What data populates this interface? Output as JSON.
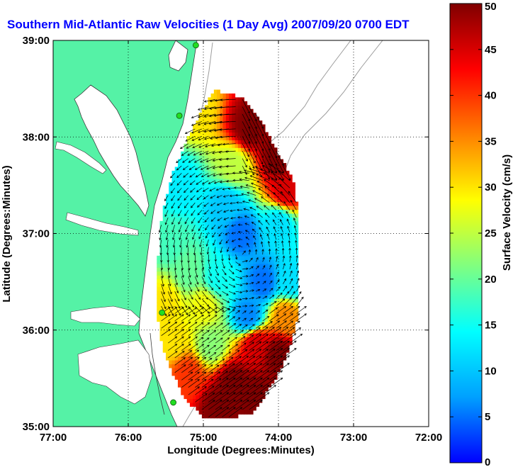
{
  "chart_data": {
    "type": "heatmap",
    "title": "Southern Mid-Atlantic Raw Velocities (1 Day Avg) 2007/09/20 0700 EDT",
    "xlabel": "Longitude (Degrees:Minutes)",
    "ylabel": "Latitude (Degrees:Minutes)",
    "xlim": [
      -77,
      -72
    ],
    "ylim": [
      35,
      39
    ],
    "x_ticks": [
      {
        "value": -77,
        "label": "77:00"
      },
      {
        "value": -76,
        "label": "76:00"
      },
      {
        "value": -75,
        "label": "75:00"
      },
      {
        "value": -74,
        "label": "74:00"
      },
      {
        "value": -73,
        "label": "73:00"
      },
      {
        "value": -72,
        "label": "72:00"
      }
    ],
    "y_ticks": [
      {
        "value": 35,
        "label": "35:00"
      },
      {
        "value": 36,
        "label": "36:00"
      },
      {
        "value": 37,
        "label": "37:00"
      },
      {
        "value": 38,
        "label": "38:00"
      },
      {
        "value": 39,
        "label": "39:00"
      }
    ],
    "grid": true,
    "colorbar": {
      "label": "Surface Velocity (cm/s)",
      "min": 0,
      "max": 50,
      "ticks": [
        {
          "value": 0,
          "label": "0"
        },
        {
          "value": 5,
          "label": "5"
        },
        {
          "value": 10,
          "label": "10"
        },
        {
          "value": 15,
          "label": "15"
        },
        {
          "value": 20,
          "label": "20"
        },
        {
          "value": 25,
          "label": "25"
        },
        {
          "value": 30,
          "label": "30"
        },
        {
          "value": 35,
          "label": "35"
        },
        {
          "value": 40,
          "label": "40"
        },
        {
          "value": 45,
          "label": "45"
        },
        {
          "value": 50,
          "label": "50"
        }
      ],
      "colormap": [
        "#0000ff",
        "#00a0ff",
        "#00ffff",
        "#80ff80",
        "#ffff00",
        "#ff8000",
        "#ff0000",
        "#800000"
      ]
    },
    "field": {
      "outline": [
        [
          -74.85,
          38.48
        ],
        [
          -74.65,
          38.45
        ],
        [
          -74.45,
          38.38
        ],
        [
          -74.25,
          38.2
        ],
        [
          -74.05,
          37.9
        ],
        [
          -73.8,
          37.55
        ],
        [
          -73.75,
          37.3
        ],
        [
          -73.72,
          36.9
        ],
        [
          -73.72,
          36.35
        ],
        [
          -73.75,
          36.1
        ],
        [
          -73.85,
          35.8
        ],
        [
          -74.0,
          35.55
        ],
        [
          -74.2,
          35.3
        ],
        [
          -74.35,
          35.15
        ],
        [
          -74.7,
          35.08
        ],
        [
          -75.0,
          35.1
        ],
        [
          -75.25,
          35.3
        ],
        [
          -75.4,
          35.55
        ],
        [
          -75.55,
          35.85
        ],
        [
          -75.62,
          36.2
        ],
        [
          -75.62,
          36.6
        ],
        [
          -75.55,
          37.2
        ],
        [
          -75.42,
          37.6
        ],
        [
          -75.2,
          38.0
        ],
        [
          -75.0,
          38.3
        ]
      ],
      "speed_points": [
        {
          "lon": -75.1,
          "lat": 38.3,
          "speed": 30
        },
        {
          "lon": -74.4,
          "lat": 38.1,
          "speed": 50
        },
        {
          "lon": -74.0,
          "lat": 37.8,
          "speed": 50
        },
        {
          "lon": -73.9,
          "lat": 37.45,
          "speed": 45
        },
        {
          "lon": -74.6,
          "lat": 37.7,
          "speed": 25
        },
        {
          "lon": -75.3,
          "lat": 37.5,
          "speed": 13
        },
        {
          "lon": -74.7,
          "lat": 37.3,
          "speed": 10
        },
        {
          "lon": -74.5,
          "lat": 37.0,
          "speed": 5
        },
        {
          "lon": -74.0,
          "lat": 37.1,
          "speed": 12
        },
        {
          "lon": -75.45,
          "lat": 36.9,
          "speed": 18
        },
        {
          "lon": -75.2,
          "lat": 36.6,
          "speed": 20
        },
        {
          "lon": -74.8,
          "lat": 36.55,
          "speed": 15
        },
        {
          "lon": -74.2,
          "lat": 36.5,
          "speed": 5
        },
        {
          "lon": -73.85,
          "lat": 36.5,
          "speed": 12
        },
        {
          "lon": -75.5,
          "lat": 36.3,
          "speed": 30
        },
        {
          "lon": -75.0,
          "lat": 36.25,
          "speed": 28
        },
        {
          "lon": -74.4,
          "lat": 36.15,
          "speed": 6
        },
        {
          "lon": -73.9,
          "lat": 36.15,
          "speed": 35
        },
        {
          "lon": -75.4,
          "lat": 35.9,
          "speed": 30
        },
        {
          "lon": -74.9,
          "lat": 35.85,
          "speed": 22
        },
        {
          "lon": -74.3,
          "lat": 35.85,
          "speed": 45
        },
        {
          "lon": -74.0,
          "lat": 35.75,
          "speed": 50
        },
        {
          "lon": -75.2,
          "lat": 35.55,
          "speed": 40
        },
        {
          "lon": -74.6,
          "lat": 35.45,
          "speed": 50
        },
        {
          "lon": -74.3,
          "lat": 35.3,
          "speed": 50
        },
        {
          "lon": -74.8,
          "lat": 35.2,
          "speed": 50
        }
      ],
      "vortex_center": {
        "lon": -74.5,
        "lat": 36.8
      }
    },
    "stations": [
      {
        "lon": -75.1,
        "lat": 38.95
      },
      {
        "lon": -75.32,
        "lat": 38.22
      },
      {
        "lon": -75.55,
        "lat": 36.18
      },
      {
        "lon": -75.4,
        "lat": 35.25
      }
    ]
  }
}
